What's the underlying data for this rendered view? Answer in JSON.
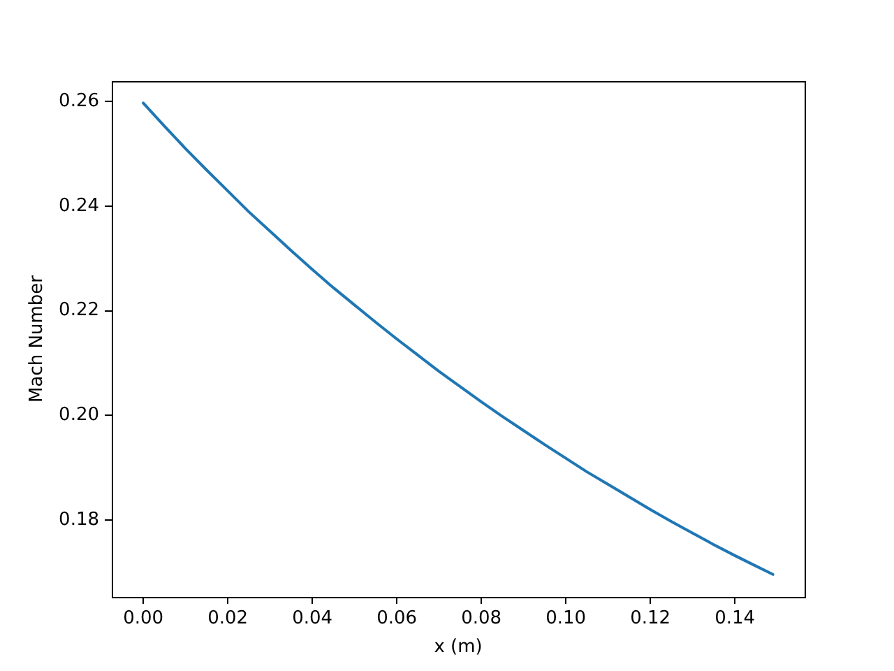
{
  "chart_data": {
    "type": "line",
    "xlabel": "x (m)",
    "ylabel": "Mach Number",
    "x": [
      0,
      0.005,
      0.01,
      0.015,
      0.02,
      0.025,
      0.03,
      0.035,
      0.04,
      0.045,
      0.05,
      0.055,
      0.06,
      0.065,
      0.07,
      0.075,
      0.08,
      0.085,
      0.09,
      0.095,
      0.1,
      0.105,
      0.11,
      0.115,
      0.12,
      0.125,
      0.13,
      0.135,
      0.14,
      0.145,
      0.149
    ],
    "values": [
      0.2597,
      0.2553,
      0.251,
      0.2469,
      0.2429,
      0.2389,
      0.2352,
      0.2315,
      0.2279,
      0.2244,
      0.2211,
      0.2178,
      0.2146,
      0.2115,
      0.2084,
      0.2055,
      0.2026,
      0.1998,
      0.1971,
      0.1944,
      0.1918,
      0.1892,
      0.1868,
      0.1844,
      0.182,
      0.1797,
      0.1775,
      0.1753,
      0.1732,
      0.1712,
      0.1696
    ],
    "color": "#1f77b4",
    "marker": "none",
    "xlim": [
      -0.00745,
      0.1565
    ],
    "ylim": [
      0.1653,
      0.2639
    ],
    "xticks": [
      {
        "value": 0,
        "label": "0.00"
      },
      {
        "value": 0.02,
        "label": "0.02"
      },
      {
        "value": 0.04,
        "label": "0.04"
      },
      {
        "value": 0.06,
        "label": "0.06"
      },
      {
        "value": 0.08,
        "label": "0.08"
      },
      {
        "value": 0.1,
        "label": "0.10"
      },
      {
        "value": 0.12,
        "label": "0.12"
      },
      {
        "value": 0.14,
        "label": "0.14"
      }
    ],
    "yticks": [
      {
        "value": 0.18,
        "label": "0.18"
      },
      {
        "value": 0.2,
        "label": "0.20"
      },
      {
        "value": 0.22,
        "label": "0.22"
      },
      {
        "value": 0.24,
        "label": "0.24"
      },
      {
        "value": 0.26,
        "label": "0.26"
      }
    ]
  }
}
